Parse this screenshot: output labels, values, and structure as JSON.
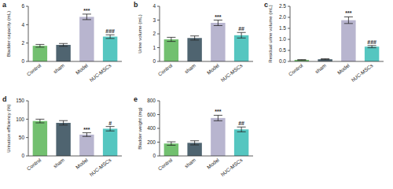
{
  "chart_data": [
    {
      "type": "bar",
      "panel_label": "a",
      "y_label": "Bladder capacity (mL)",
      "categories": [
        "Control",
        "sham",
        "Model",
        "hUC-MSCs"
      ],
      "values": [
        1.7,
        1.8,
        4.85,
        2.7
      ],
      "errors": [
        0.15,
        0.15,
        0.3,
        0.2
      ],
      "colors": [
        "#72c06f",
        "#4f6470",
        "#b8b5cf",
        "#55c6c0"
      ],
      "ylim": [
        0,
        6
      ],
      "yticks": [
        0,
        2,
        4,
        6
      ],
      "annotations": [
        {
          "category": "Model",
          "text": "***"
        },
        {
          "category": "hUC-MSCs",
          "text": "###"
        }
      ]
    },
    {
      "type": "bar",
      "panel_label": "b",
      "y_label": "Urine volume (mL)",
      "categories": [
        "Control",
        "sham",
        "Model",
        "hUC-MSCs"
      ],
      "values": [
        1.6,
        1.7,
        2.8,
        1.9
      ],
      "errors": [
        0.15,
        0.15,
        0.2,
        0.2
      ],
      "colors": [
        "#72c06f",
        "#4f6470",
        "#b8b5cf",
        "#55c6c0"
      ],
      "ylim": [
        0,
        4
      ],
      "yticks": [
        0,
        1,
        2,
        3,
        4
      ],
      "annotations": [
        {
          "category": "Model",
          "text": "***"
        },
        {
          "category": "hUC-MSCs",
          "text": "##"
        }
      ]
    },
    {
      "type": "bar",
      "panel_label": "c",
      "y_label": "Residual urine volume (mL)",
      "categories": [
        "Control",
        "sham",
        "Model",
        "hUC-MSCs"
      ],
      "values": [
        0.07,
        0.1,
        1.87,
        0.67
      ],
      "errors": [
        0.01,
        0.02,
        0.15,
        0.05
      ],
      "colors": [
        "#72c06f",
        "#4f6470",
        "#b8b5cf",
        "#55c6c0"
      ],
      "ylim": [
        0,
        2.5
      ],
      "yticks": [
        {
          "value": 0,
          "label": "0.0"
        },
        0.5,
        {
          "value": 1,
          "label": "1.0"
        },
        1.5,
        {
          "value": 2,
          "label": "2.0"
        },
        2.5
      ],
      "annotations": [
        {
          "category": "Model",
          "text": "***"
        },
        {
          "category": "hUC-MSCs",
          "text": "###"
        }
      ]
    },
    {
      "type": "bar",
      "panel_label": "d",
      "y_label": "Urination efficiency (%)",
      "categories": [
        "Control",
        "sham",
        "Model",
        "hUC-MSCs"
      ],
      "values": [
        95,
        90,
        58,
        74
      ],
      "errors": [
        5,
        6,
        5,
        6
      ],
      "colors": [
        "#72c06f",
        "#4f6470",
        "#b8b5cf",
        "#55c6c0"
      ],
      "ylim": [
        0,
        150
      ],
      "yticks": [
        0,
        50,
        100,
        150
      ],
      "annotations": [
        {
          "category": "Model",
          "text": "***"
        },
        {
          "category": "hUC-MSCs",
          "text": "#"
        }
      ]
    },
    {
      "type": "bar",
      "panel_label": "e",
      "y_label": "Bladder weight (mg)",
      "categories": [
        "Control",
        "sham",
        "Model",
        "hUC-MSCs"
      ],
      "values": [
        180,
        190,
        550,
        385
      ],
      "errors": [
        25,
        30,
        40,
        35
      ],
      "colors": [
        "#72c06f",
        "#4f6470",
        "#b8b5cf",
        "#55c6c0"
      ],
      "ylim": [
        0,
        800
      ],
      "yticks": [
        0,
        200,
        400,
        600,
        800
      ],
      "annotations": [
        {
          "category": "Model",
          "text": "***"
        },
        {
          "category": "hUC-MSCs",
          "text": "##"
        }
      ]
    }
  ]
}
